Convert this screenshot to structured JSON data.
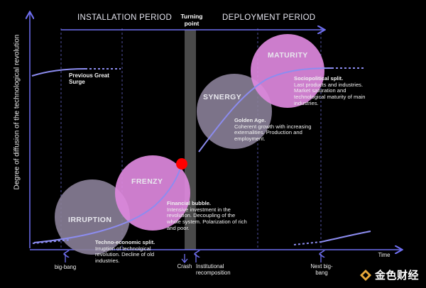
{
  "y_axis_label": "Degree of diffusion of the technological revolution",
  "x_axis_label": "Time",
  "periods": {
    "installation": "INSTALLATION PERIOD",
    "deployment": "DEPLOYMENT PERIOD"
  },
  "turning_point": "Turning point",
  "prev_surge": "Previous Great Surge",
  "phases": {
    "irruption": "IRRUPTION",
    "frenzy": "FRENZY",
    "synergy": "SYNERGY",
    "maturity": "MATURITY"
  },
  "descriptions": {
    "irruption": {
      "title": "Techno-economic split.",
      "body": "Irruption of technolgical revolution. Decline of old industries."
    },
    "frenzy": {
      "title": "Financial bubble.",
      "body": "Intensive investment in the revolution. Decoupling of the whole system. Polarization of rich and poor."
    },
    "synergy": {
      "title": "Golden Age.",
      "body": "Coherent growth with increasing externalities. Production and employment."
    },
    "maturity": {
      "title": "Sociopolitical split.",
      "body": "Last products and industries. Market saturation and technological maturity of main industries."
    }
  },
  "x_markers": {
    "big_bang": "big-bang",
    "crash": "Crash",
    "institutional": "Institutional recomposition",
    "next_big_bang": "Next big-bang"
  },
  "watermark": "金色财经",
  "colors": {
    "background": "#000000",
    "axis": "#6f6ff0",
    "curve": "#8c8cf0",
    "bubble_gray": "#8a7f98",
    "bubble_pink": "#dd88dd",
    "turning_bar": "#4a4a4a",
    "crash_dot": "#ff0000",
    "watermark_gold": "#e8a83a"
  }
}
